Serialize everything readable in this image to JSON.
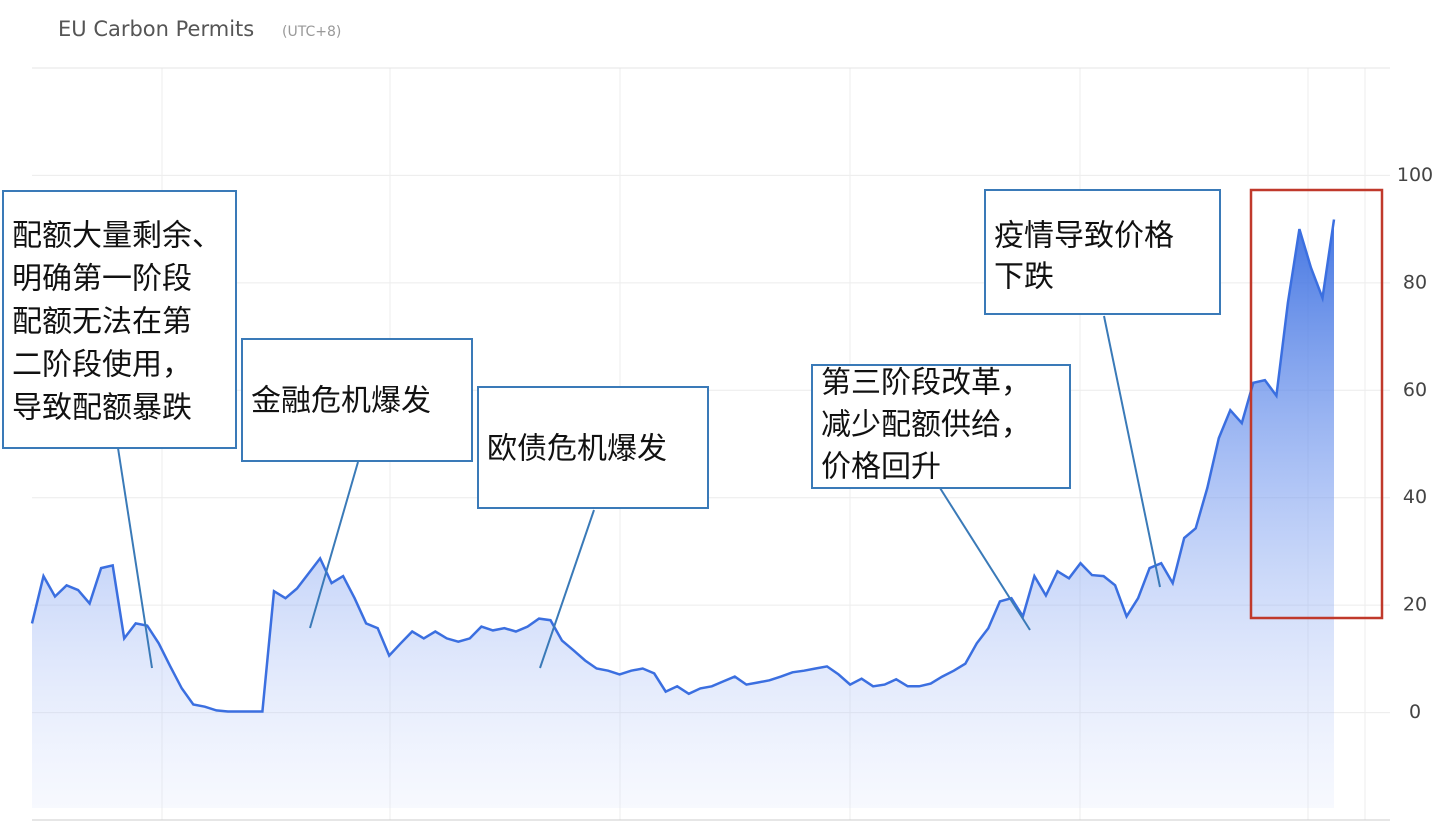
{
  "chart_data": {
    "type": "area",
    "title": "EU Carbon Permits",
    "subtitle": "(UTC+8)",
    "series": [
      {
        "color": "#3b6fe0",
        "values": [
          16.6,
          25.4,
          21.6,
          23.7,
          22.8,
          20.3,
          26.9,
          27.4,
          13.8,
          16.6,
          16.2,
          12.9,
          8.6,
          4.5,
          1.5,
          1.1,
          0.4,
          0.2,
          0.2,
          0.2,
          0.2,
          22.6,
          21.3,
          23.1,
          25.9,
          28.7,
          24.1,
          25.4,
          21.3,
          16.6,
          15.7,
          10.6,
          12.9,
          15.1,
          13.8,
          15.1,
          13.8,
          13.2,
          13.8,
          16.0,
          15.3,
          15.7,
          15.1,
          16.0,
          17.5,
          17.2,
          13.4,
          11.6,
          9.7,
          8.2,
          7.8,
          7.1,
          7.8,
          8.2,
          7.3,
          3.9,
          4.9,
          3.5,
          4.5,
          4.9,
          5.8,
          6.7,
          5.2,
          5.6,
          6.0,
          6.7,
          7.5,
          7.8,
          8.2,
          8.6,
          7.1,
          5.2,
          6.3,
          4.9,
          5.2,
          6.2,
          4.9,
          4.9,
          5.4,
          6.7,
          7.8,
          9.1,
          12.9,
          15.7,
          20.7,
          21.3,
          17.9,
          25.4,
          21.8,
          26.3,
          25.0,
          27.8,
          25.6,
          25.4,
          23.7,
          17.9,
          21.3,
          26.9,
          27.8,
          24.1,
          32.5,
          34.3,
          41.8,
          51.1,
          56.3,
          53.9,
          61.4,
          61.9,
          59.0,
          76.3,
          90.0,
          82.8,
          77.2,
          91.8
        ]
      }
    ],
    "ylim": [
      -20,
      120
    ],
    "yticks": [
      0,
      20,
      40,
      60,
      80,
      100
    ],
    "grid": true,
    "annotations": [
      {
        "lines": [
          "配额大量剩余、",
          "明确第一阶段",
          "配额无法在第",
          "二阶段使用，",
          "导致配额暴跌"
        ]
      },
      {
        "lines": [
          "金融危机爆发"
        ]
      },
      {
        "lines": [
          "欧债危机爆发"
        ]
      },
      {
        "lines": [
          "第三阶段改革，",
          "减少配额供给，",
          "价格回升"
        ]
      },
      {
        "lines": [
          "疫情导致价格",
          "下跌"
        ]
      }
    ]
  }
}
